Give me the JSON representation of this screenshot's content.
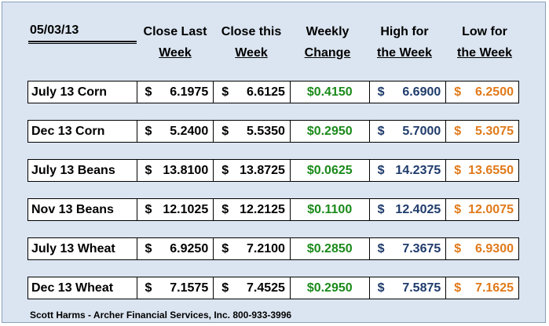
{
  "date": "05/03/13",
  "headers": [
    {
      "l1": "Close Last",
      "l2": "Week"
    },
    {
      "l1": "Close this",
      "l2": "Week"
    },
    {
      "l1": "Weekly",
      "l2": "Change"
    },
    {
      "l1": "High for",
      "l2": "the Week"
    },
    {
      "l1": "Low for",
      "l2": "the Week"
    }
  ],
  "rows": [
    {
      "name": "July 13 Corn",
      "last": "6.1975",
      "this": "6.6125",
      "change": "$0.4150",
      "high": "6.6900",
      "low": "6.2500"
    },
    {
      "name": "Dec 13 Corn",
      "last": "5.2400",
      "this": "5.5350",
      "change": "$0.2950",
      "high": "5.7000",
      "low": "5.3075"
    },
    {
      "name": "July 13 Beans",
      "last": "13.8100",
      "this": "13.8725",
      "change": "$0.0625",
      "high": "14.2375",
      "low": "13.6550"
    },
    {
      "name": "Nov 13 Beans",
      "last": "12.1025",
      "this": "12.2125",
      "change": "$0.1100",
      "high": "12.4025",
      "low": "12.0075"
    },
    {
      "name": "July 13 Wheat",
      "last": "6.9250",
      "this": "7.2100",
      "change": "$0.2850",
      "high": "7.3675",
      "low": "6.9300"
    },
    {
      "name": "Dec 13 Wheat",
      "last": "7.1575",
      "this": "7.4525",
      "change": "$0.2950",
      "high": "7.5875",
      "low": "7.1625"
    }
  ],
  "currency": "$",
  "footer": "Scott Harms - Archer Financial Services, Inc.  800-933-3996"
}
